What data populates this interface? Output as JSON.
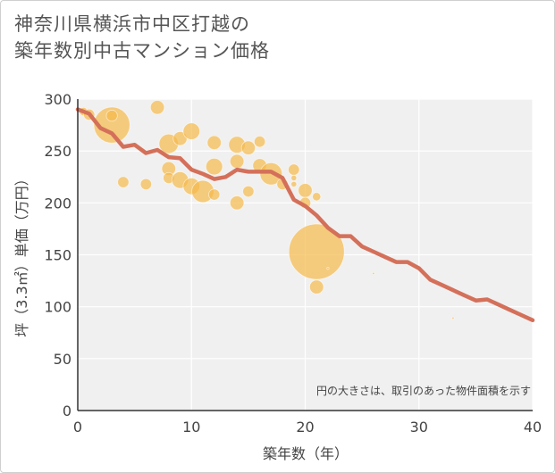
{
  "title": {
    "line1": "神奈川県横浜市中区打越の",
    "line2": "築年数別中古マンション価格"
  },
  "chart_data": {
    "type": "scatter",
    "xlabel": "築年数（年）",
    "ylabel": "坪（3.3㎡）単価（万円）",
    "xlim": [
      0,
      40
    ],
    "ylim": [
      0,
      300
    ],
    "xticks": [
      "0",
      "10",
      "20",
      "30",
      "40"
    ],
    "yticks": [
      "0",
      "50",
      "100",
      "150",
      "200",
      "250",
      "300"
    ],
    "annotation": "円の大きさは、取引のあった物件面積を示す",
    "grid": true,
    "colors": {
      "bubble": "#f5b94a",
      "line": "#d4705a",
      "grid": "#dddddd",
      "plot_bg": "#f0f0f0"
    },
    "bubbles": [
      {
        "x": 0.5,
        "y": 288,
        "s": 3
      },
      {
        "x": 1,
        "y": 285,
        "s": 4
      },
      {
        "x": 3,
        "y": 275,
        "s": 13
      },
      {
        "x": 3,
        "y": 284,
        "s": 4
      },
      {
        "x": 4,
        "y": 220,
        "s": 4
      },
      {
        "x": 6,
        "y": 218,
        "s": 4
      },
      {
        "x": 7,
        "y": 292,
        "s": 5
      },
      {
        "x": 8,
        "y": 257,
        "s": 7
      },
      {
        "x": 8,
        "y": 233,
        "s": 5
      },
      {
        "x": 8,
        "y": 224,
        "s": 4
      },
      {
        "x": 9,
        "y": 262,
        "s": 5
      },
      {
        "x": 9,
        "y": 222,
        "s": 6
      },
      {
        "x": 10,
        "y": 269,
        "s": 6
      },
      {
        "x": 10,
        "y": 216,
        "s": 6
      },
      {
        "x": 11,
        "y": 211,
        "s": 8
      },
      {
        "x": 12,
        "y": 258,
        "s": 5
      },
      {
        "x": 12,
        "y": 235,
        "s": 6
      },
      {
        "x": 12,
        "y": 208,
        "s": 4
      },
      {
        "x": 14,
        "y": 256,
        "s": 6
      },
      {
        "x": 14,
        "y": 240,
        "s": 5
      },
      {
        "x": 14,
        "y": 200,
        "s": 5
      },
      {
        "x": 15,
        "y": 253,
        "s": 5
      },
      {
        "x": 15,
        "y": 211,
        "s": 4
      },
      {
        "x": 16,
        "y": 259,
        "s": 4
      },
      {
        "x": 16,
        "y": 236,
        "s": 5
      },
      {
        "x": 17,
        "y": 228,
        "s": 8
      },
      {
        "x": 18,
        "y": 218,
        "s": 4
      },
      {
        "x": 19,
        "y": 232,
        "s": 4
      },
      {
        "x": 19,
        "y": 224,
        "s": 2
      },
      {
        "x": 19,
        "y": 218,
        "s": 2
      },
      {
        "x": 20,
        "y": 212,
        "s": 5
      },
      {
        "x": 20,
        "y": 200,
        "s": 4
      },
      {
        "x": 21,
        "y": 153,
        "s": 20
      },
      {
        "x": 21,
        "y": 206,
        "s": 3
      },
      {
        "x": 21,
        "y": 119,
        "s": 5
      },
      {
        "x": 22,
        "y": 137,
        "s": 1
      },
      {
        "x": 26,
        "y": 132,
        "s": 1
      },
      {
        "x": 33,
        "y": 89,
        "s": 1
      }
    ],
    "series": [
      {
        "x": [
          0,
          1,
          2,
          3,
          4,
          5,
          6,
          7,
          8,
          9,
          10,
          11,
          12,
          13,
          14,
          15,
          16,
          17,
          18,
          19,
          20,
          21,
          22,
          23,
          24,
          25,
          26,
          27,
          28,
          29,
          30,
          31,
          32,
          33,
          34,
          35,
          36,
          37,
          38,
          39,
          40
        ],
        "y": [
          290,
          286,
          272,
          267,
          254,
          256,
          248,
          251,
          244,
          243,
          232,
          228,
          223,
          225,
          232,
          230,
          230,
          230,
          224,
          203,
          197,
          188,
          176,
          168,
          168,
          158,
          153,
          148,
          143,
          143,
          137,
          126,
          121,
          116,
          111,
          106,
          107,
          102,
          97,
          92,
          87
        ]
      }
    ]
  }
}
